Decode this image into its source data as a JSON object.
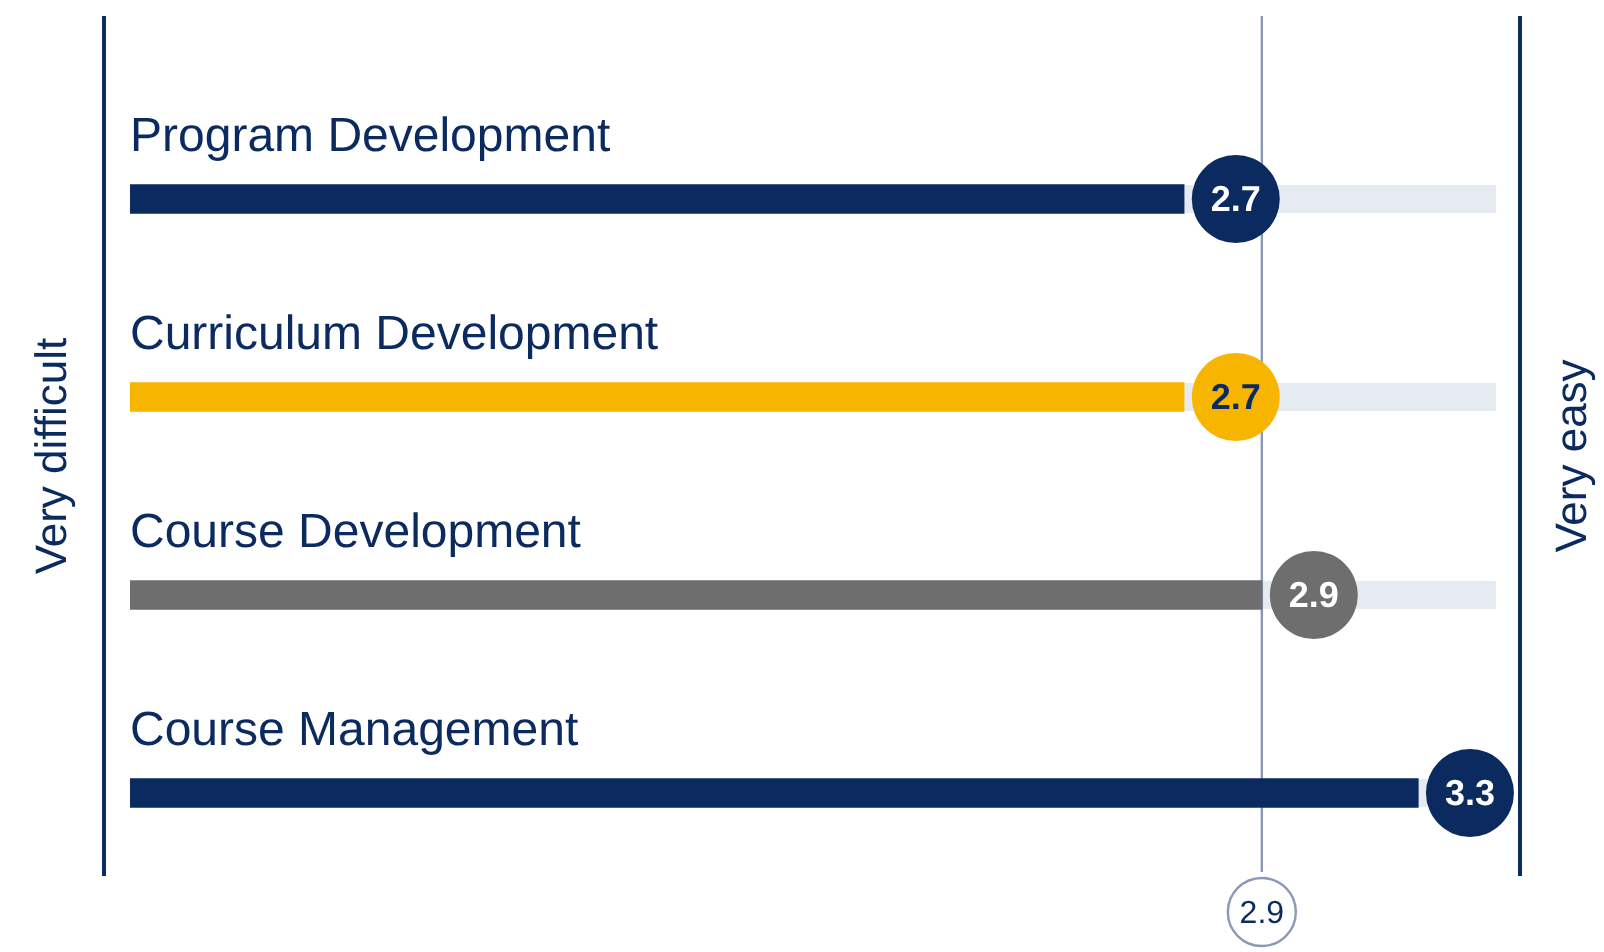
{
  "chart_data": {
    "type": "bar",
    "orientation": "horizontal",
    "categories": [
      "Program Development",
      "Curriculum Development",
      "Course Development",
      "Course Management"
    ],
    "values": [
      2.7,
      2.7,
      2.9,
      3.3
    ],
    "colors": [
      "#0b2a5f",
      "#f7b500",
      "#6e6e6e",
      "#0b2a5f"
    ],
    "tick_labels": false,
    "data_labels": true,
    "ref_lines": [
      {
        "axis": "x",
        "value": 2.9,
        "label": "2.9",
        "color": "#8a9ab5"
      }
    ],
    "annotations": [
      "Very difficult",
      "Very easy"
    ]
  }
}
